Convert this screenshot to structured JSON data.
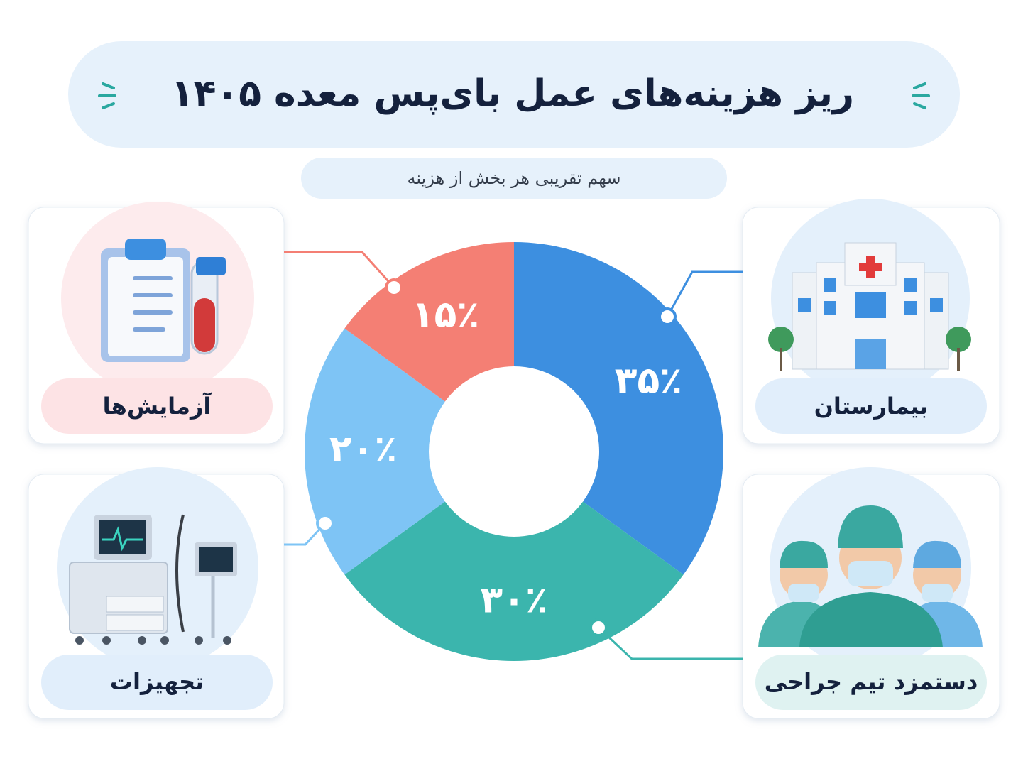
{
  "chart_data": {
    "type": "donut",
    "title": "ریز هزینه‌های عمل بای‌پس معده ۱۴۰۵",
    "subtitle": "سهم تقریبی هر بخش از هزینه",
    "categories": [
      "بیمارستان",
      "دستمزد تیم جراحی",
      "تجهیزات",
      "آزمایش‌ها"
    ],
    "values": [
      35,
      30,
      20,
      15
    ],
    "value_labels": [
      "۳۵٪",
      "۳۰٪",
      "۲۰٪",
      "۱۵٪"
    ],
    "colors": [
      "#3d8fe0",
      "#3bb5ad",
      "#7ec4f5",
      "#f47f74"
    ]
  }
}
